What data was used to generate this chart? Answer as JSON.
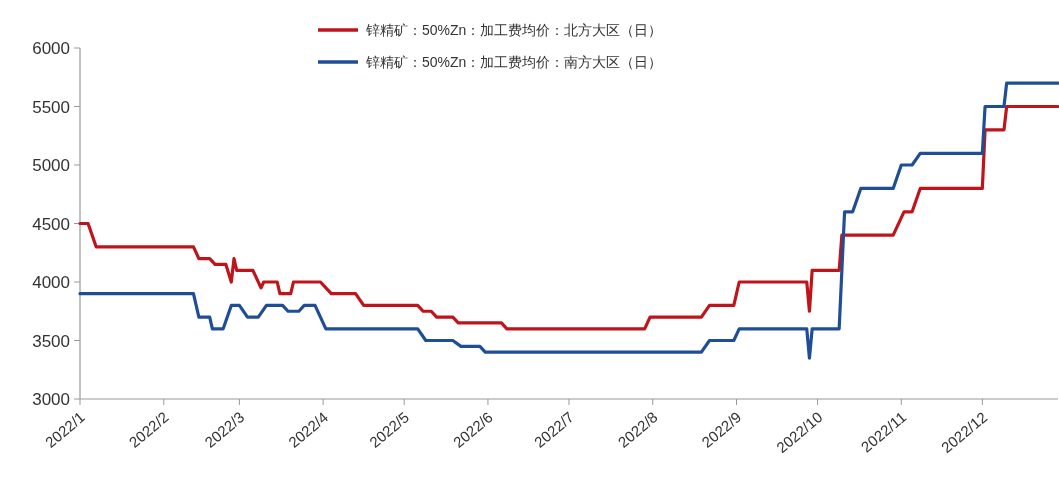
{
  "chart_data": {
    "type": "line",
    "xlim": [
      "2022-01-01",
      "2022-12-29"
    ],
    "ylim": [
      3000,
      6000
    ],
    "yticks": [
      3000,
      3500,
      4000,
      4500,
      5000,
      5500,
      6000
    ],
    "xticks": [
      {
        "value": "2022-01-01",
        "label": "2022/1"
      },
      {
        "value": "2022-02-01",
        "label": "2022/2"
      },
      {
        "value": "2022-03-01",
        "label": "2022/3"
      },
      {
        "value": "2022-04-01",
        "label": "2022/4"
      },
      {
        "value": "2022-05-01",
        "label": "2022/5"
      },
      {
        "value": "2022-06-01",
        "label": "2022/6"
      },
      {
        "value": "2022-07-01",
        "label": "2022/7"
      },
      {
        "value": "2022-08-01",
        "label": "2022/8"
      },
      {
        "value": "2022-09-01",
        "label": "2022/9"
      },
      {
        "value": "2022-10-01",
        "label": "2022/10"
      },
      {
        "value": "2022-11-01",
        "label": "2022/11"
      },
      {
        "value": "2022-12-01",
        "label": "2022/12"
      }
    ],
    "grid": false,
    "legend": "top",
    "series": [
      {
        "name": "锌精矿：50%Zn：加工费均价：北方大区（日）",
        "color": "#c0141c",
        "x": [
          "2022-01-01",
          "2022-01-04",
          "2022-01-07",
          "2022-02-12",
          "2022-02-14",
          "2022-02-18",
          "2022-02-20",
          "2022-02-24",
          "2022-02-26",
          "2022-02-27",
          "2022-02-28",
          "2022-03-06",
          "2022-03-09",
          "2022-03-10",
          "2022-03-15",
          "2022-03-16",
          "2022-03-20",
          "2022-03-21",
          "2022-03-31",
          "2022-04-04",
          "2022-04-13",
          "2022-04-16",
          "2022-05-06",
          "2022-05-08",
          "2022-05-11",
          "2022-05-13",
          "2022-05-19",
          "2022-05-21",
          "2022-06-06",
          "2022-06-08",
          "2022-07-29",
          "2022-07-31",
          "2022-08-19",
          "2022-08-22",
          "2022-08-31",
          "2022-09-02",
          "2022-09-27",
          "2022-09-28",
          "2022-09-29",
          "2022-10-09",
          "2022-10-10",
          "2022-10-29",
          "2022-11-02",
          "2022-11-05",
          "2022-11-08",
          "2022-12-01",
          "2022-12-02",
          "2022-12-09",
          "2022-12-10",
          "2022-12-29"
        ],
        "values": [
          4500,
          4500,
          4300,
          4300,
          4200,
          4200,
          4150,
          4150,
          4000,
          4200,
          4100,
          4100,
          3950,
          4000,
          4000,
          3900,
          3900,
          4000,
          4000,
          3900,
          3900,
          3800,
          3800,
          3750,
          3750,
          3700,
          3700,
          3650,
          3650,
          3600,
          3600,
          3700,
          3700,
          3800,
          3800,
          4000,
          4000,
          3750,
          4100,
          4100,
          4400,
          4400,
          4600,
          4600,
          4800,
          4800,
          5300,
          5300,
          5500,
          5500
        ]
      },
      {
        "name": "锌精矿：50%Zn：加工费均价：南方大区（日）",
        "color": "#1f4e96",
        "x": [
          "2022-01-01",
          "2022-02-12",
          "2022-02-14",
          "2022-02-18",
          "2022-02-19",
          "2022-02-23",
          "2022-02-26",
          "2022-03-01",
          "2022-03-04",
          "2022-03-08",
          "2022-03-11",
          "2022-03-17",
          "2022-03-19",
          "2022-03-23",
          "2022-03-25",
          "2022-03-29",
          "2022-04-02",
          "2022-05-06",
          "2022-05-09",
          "2022-05-19",
          "2022-05-22",
          "2022-05-29",
          "2022-05-31",
          "2022-08-19",
          "2022-08-22",
          "2022-08-31",
          "2022-09-02",
          "2022-09-27",
          "2022-09-28",
          "2022-09-29",
          "2022-10-09",
          "2022-10-11",
          "2022-10-14",
          "2022-10-17",
          "2022-10-29",
          "2022-11-01",
          "2022-11-05",
          "2022-11-08",
          "2022-12-01",
          "2022-12-02",
          "2022-12-09",
          "2022-12-10",
          "2022-12-29"
        ],
        "values": [
          3900,
          3900,
          3700,
          3700,
          3600,
          3600,
          3800,
          3800,
          3700,
          3700,
          3800,
          3800,
          3750,
          3750,
          3800,
          3800,
          3600,
          3600,
          3500,
          3500,
          3450,
          3450,
          3400,
          3400,
          3500,
          3500,
          3600,
          3600,
          3350,
          3600,
          3600,
          4600,
          4600,
          4800,
          4800,
          5000,
          5000,
          5100,
          5100,
          5500,
          5500,
          5700,
          5700
        ]
      }
    ]
  }
}
